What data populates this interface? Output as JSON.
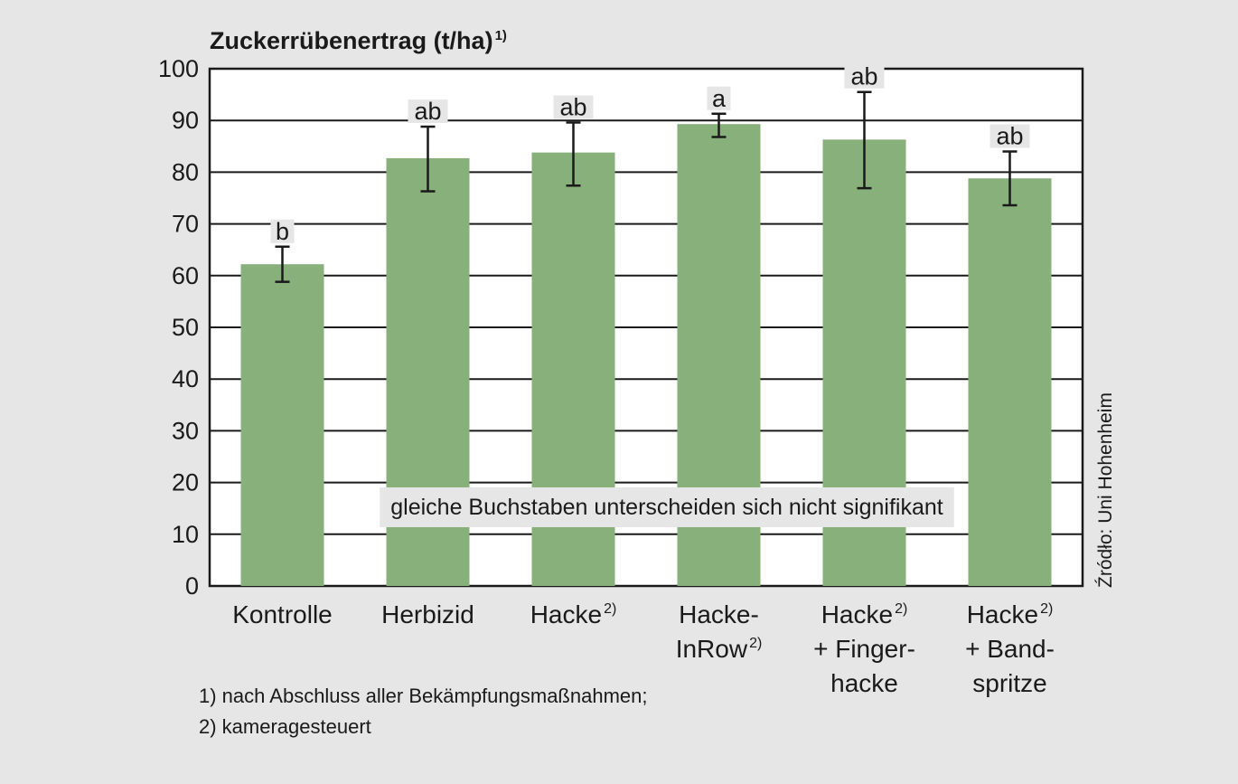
{
  "chart_data": {
    "type": "bar",
    "title": "Zuckerrübenertrag (t/ha)",
    "title_sup": "1)",
    "ylim": [
      0,
      100
    ],
    "yticks": [
      0,
      10,
      20,
      30,
      40,
      50,
      60,
      70,
      80,
      90,
      100
    ],
    "grid": true,
    "categories": [
      {
        "lines": [
          {
            "text": "Kontrolle",
            "sup": ""
          }
        ]
      },
      {
        "lines": [
          {
            "text": "Herbizid",
            "sup": ""
          }
        ]
      },
      {
        "lines": [
          {
            "text": "Hacke",
            "sup": "2)"
          }
        ]
      },
      {
        "lines": [
          {
            "text": "Hacke-",
            "sup": ""
          },
          {
            "text": "InRow",
            "sup": "2)"
          }
        ]
      },
      {
        "lines": [
          {
            "text": "Hacke",
            "sup": "2)"
          },
          {
            "text": "+ Finger-",
            "sup": ""
          },
          {
            "text": "hacke",
            "sup": ""
          }
        ]
      },
      {
        "lines": [
          {
            "text": "Hacke",
            "sup": "2)"
          },
          {
            "text": "+ Band-",
            "sup": ""
          },
          {
            "text": "spritze",
            "sup": ""
          }
        ]
      }
    ],
    "values": [
      62.2,
      82.7,
      83.8,
      89.3,
      86.3,
      78.8
    ],
    "error_low": [
      58.8,
      76.3,
      77.4,
      86.8,
      76.9,
      73.6
    ],
    "error_high": [
      65.6,
      88.8,
      89.6,
      91.3,
      95.5,
      84.0
    ],
    "significance_letters": [
      "b",
      "ab",
      "ab",
      "a",
      "ab",
      "ab"
    ],
    "bar_color": "#87b07b",
    "note": "gleiche Buchstaben unterscheiden sich nicht signifikant",
    "footnotes": [
      "1) nach Abschluss aller Bekämpfungsmaßnahmen;",
      "2) kameragesteuert"
    ],
    "source": "Źródło: Uni Hohenheim"
  },
  "colors": {
    "background": "#e6e6e6",
    "plot_background": "#ffffff",
    "bar": "#87b07b",
    "grid": "#1a1a1a",
    "label_box": "#e6e6e6"
  }
}
